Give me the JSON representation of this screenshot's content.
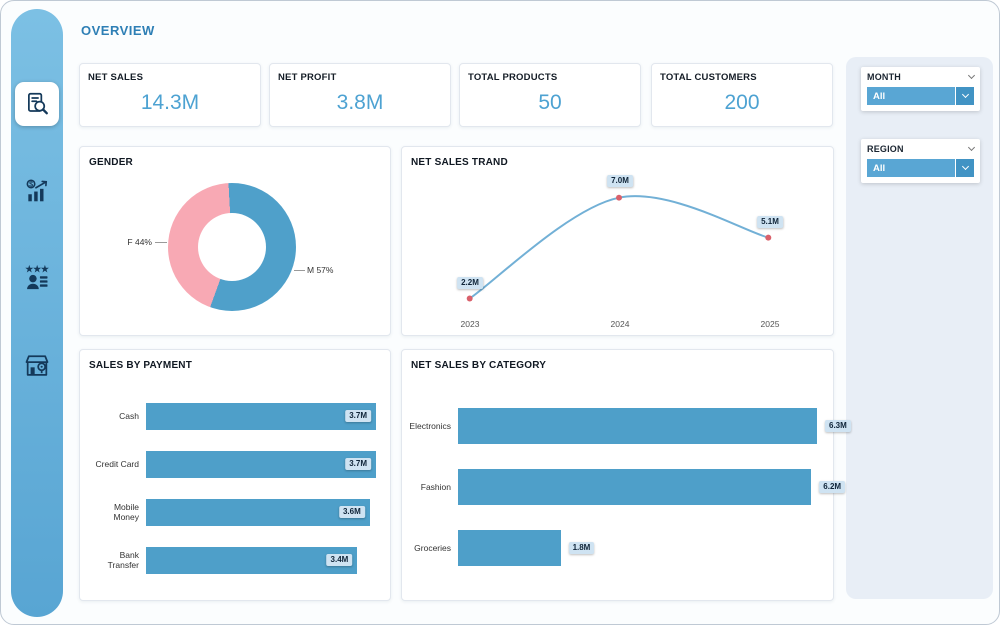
{
  "page": {
    "title": "OVERVIEW"
  },
  "sidebar": {
    "items": [
      {
        "name": "report-search",
        "active": true
      },
      {
        "name": "sales-growth",
        "active": false
      },
      {
        "name": "customers",
        "active": false
      },
      {
        "name": "store-locations",
        "active": false
      }
    ]
  },
  "kpis": [
    {
      "label": "NET SALES",
      "value": "14.3M"
    },
    {
      "label": "NET PROFIT",
      "value": "3.8M"
    },
    {
      "label": "TOTAL PRODUCTS",
      "value": "50"
    },
    {
      "label": "TOTAL CUSTOMERS",
      "value": "200"
    }
  ],
  "slicers": [
    {
      "label": "MONTH",
      "value": "All"
    },
    {
      "label": "REGION",
      "value": "All"
    }
  ],
  "colors": {
    "accent": "#4e9fc9",
    "accent_dark": "#4193c4",
    "pink": "#f8a9b4",
    "kpi_value": "#4da2d2",
    "title_blue": "#2e7fb5",
    "chip_bg": "#cfe3f2",
    "marker_red": "#d9606b",
    "line_blue": "#72b0d6",
    "sidebar_blue": "#63acd9"
  },
  "chart_data": [
    {
      "id": "gender",
      "type": "pie",
      "title": "GENDER",
      "donut": true,
      "start_deg": 200,
      "slices": [
        {
          "label": "F",
          "pct": 44,
          "color": "#f8a9b4",
          "callout": "F 44%"
        },
        {
          "label": "M",
          "pct": 57,
          "color": "#4fa0ca",
          "callout": "M 57%"
        }
      ]
    },
    {
      "id": "trend",
      "type": "line",
      "title": "NET SALES TRAND",
      "x": [
        "2023",
        "2024",
        "2025"
      ],
      "values": [
        2.2,
        7.0,
        5.1
      ],
      "point_labels": [
        "2.2M",
        "7.0M",
        "5.1M"
      ],
      "ylim": [
        1.5,
        8
      ],
      "grid": false,
      "legend": false
    },
    {
      "id": "payment",
      "type": "bar",
      "title": "SALES BY PAYMENT",
      "orientation": "horizontal",
      "categories": [
        "Cash",
        "Credit Card",
        "Mobile Money",
        "Bank Transfer"
      ],
      "values": [
        3.7,
        3.7,
        3.6,
        3.4
      ],
      "value_labels": [
        "3.7M",
        "3.7M",
        "3.6M",
        "3.4M"
      ],
      "xlim": [
        0,
        3.7
      ],
      "value_label_position": "inside"
    },
    {
      "id": "category",
      "type": "bar",
      "title": "NET SALES BY CATEGORY",
      "orientation": "horizontal",
      "categories": [
        "Electronics",
        "Fashion",
        "Groceries"
      ],
      "values": [
        6.3,
        6.2,
        1.8
      ],
      "value_labels": [
        "6.3M",
        "6.2M",
        "1.8M"
      ],
      "xlim": [
        0,
        6.3
      ],
      "value_label_position": "outside"
    }
  ]
}
